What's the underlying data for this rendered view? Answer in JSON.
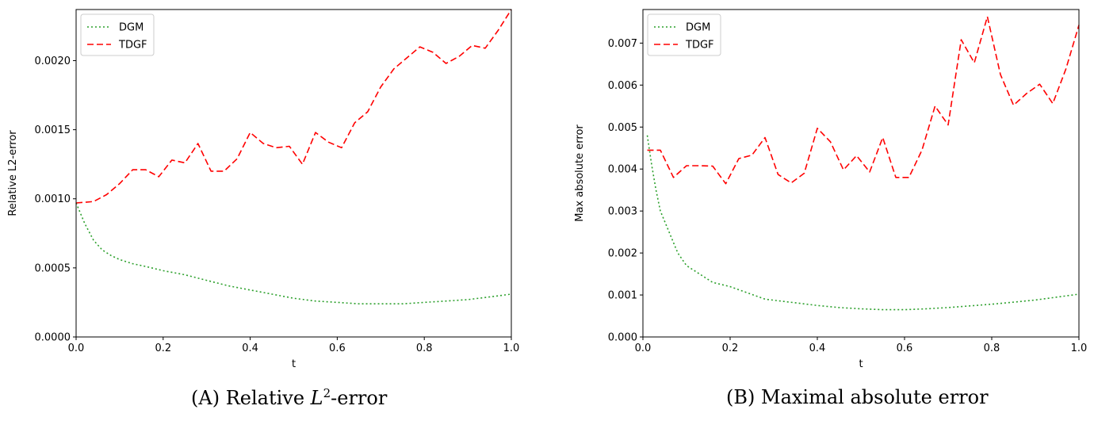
{
  "chart_data": [
    {
      "type": "line",
      "panel": "(A)",
      "caption": {
        "prefix": "(A) Relative ",
        "math": "L",
        "sup": "2",
        "suffix": "-error"
      },
      "xlabel": "t",
      "ylabel": "Relative L2-error",
      "xlim": [
        0.0,
        1.0
      ],
      "ylim": [
        0.0,
        0.00237
      ],
      "xticks": [
        0.0,
        0.2,
        0.4,
        0.6,
        0.8,
        1.0
      ],
      "xtick_labels": [
        "0.0",
        "0.2",
        "0.4",
        "0.6",
        "0.8",
        "1.0"
      ],
      "yticks": [
        0.0,
        0.0005,
        0.001,
        0.0015,
        0.002
      ],
      "ytick_labels": [
        "0.0000",
        "0.0005",
        "0.0010",
        "0.0015",
        "0.0020"
      ],
      "legend_position": "top-left",
      "series": [
        {
          "name": "DGM",
          "style": "dotted",
          "color": "#2ca02c",
          "x": [
            0.0,
            0.02,
            0.04,
            0.06,
            0.08,
            0.1,
            0.13,
            0.16,
            0.2,
            0.25,
            0.3,
            0.35,
            0.4,
            0.45,
            0.5,
            0.55,
            0.6,
            0.65,
            0.7,
            0.75,
            0.8,
            0.85,
            0.9,
            0.95,
            1.0
          ],
          "values": [
            0.00097,
            0.00082,
            0.0007,
            0.00063,
            0.00059,
            0.00056,
            0.00053,
            0.00051,
            0.00048,
            0.00045,
            0.00041,
            0.00037,
            0.00034,
            0.00031,
            0.00028,
            0.00026,
            0.00025,
            0.00024,
            0.00024,
            0.00024,
            0.00025,
            0.00026,
            0.00027,
            0.00029,
            0.00031
          ]
        },
        {
          "name": "TDGF",
          "style": "dashed",
          "color": "#ff0000",
          "x": [
            0.0,
            0.04,
            0.07,
            0.1,
            0.13,
            0.16,
            0.19,
            0.22,
            0.25,
            0.28,
            0.31,
            0.34,
            0.37,
            0.4,
            0.43,
            0.46,
            0.49,
            0.52,
            0.55,
            0.58,
            0.61,
            0.64,
            0.67,
            0.7,
            0.73,
            0.76,
            0.79,
            0.82,
            0.85,
            0.88,
            0.91,
            0.94,
            0.97,
            1.0
          ],
          "values": [
            0.00097,
            0.00098,
            0.00103,
            0.00111,
            0.00121,
            0.00121,
            0.00116,
            0.00128,
            0.00126,
            0.0014,
            0.0012,
            0.0012,
            0.00129,
            0.00148,
            0.0014,
            0.00137,
            0.00138,
            0.00125,
            0.00148,
            0.00141,
            0.00137,
            0.00155,
            0.00163,
            0.00181,
            0.00194,
            0.00202,
            0.0021,
            0.00206,
            0.00198,
            0.00203,
            0.00211,
            0.00209,
            0.00222,
            0.00237
          ]
        }
      ]
    },
    {
      "type": "line",
      "panel": "(B)",
      "caption": {
        "prefix": "(B) Maximal absolute error",
        "math": "",
        "sup": "",
        "suffix": ""
      },
      "xlabel": "t",
      "ylabel": "Max absolute error",
      "xlim": [
        0.0,
        1.0
      ],
      "ylim": [
        0.0,
        0.0078
      ],
      "xticks": [
        0.0,
        0.2,
        0.4,
        0.6,
        0.8,
        1.0
      ],
      "xtick_labels": [
        "0.0",
        "0.2",
        "0.4",
        "0.6",
        "0.8",
        "1.0"
      ],
      "yticks": [
        0.0,
        0.001,
        0.002,
        0.003,
        0.004,
        0.005,
        0.006,
        0.007
      ],
      "ytick_labels": [
        "0.000",
        "0.001",
        "0.002",
        "0.003",
        "0.004",
        "0.005",
        "0.006",
        "0.007"
      ],
      "legend_position": "top-left",
      "series": [
        {
          "name": "DGM",
          "style": "dotted",
          "color": "#2ca02c",
          "x": [
            0.01,
            0.02,
            0.03,
            0.04,
            0.06,
            0.08,
            0.1,
            0.13,
            0.16,
            0.2,
            0.24,
            0.28,
            0.32,
            0.36,
            0.4,
            0.45,
            0.5,
            0.55,
            0.6,
            0.65,
            0.7,
            0.75,
            0.8,
            0.85,
            0.9,
            0.95,
            1.0
          ],
          "values": [
            0.0048,
            0.0041,
            0.0035,
            0.003,
            0.0025,
            0.002,
            0.0017,
            0.0015,
            0.0013,
            0.0012,
            0.00105,
            0.0009,
            0.00085,
            0.0008,
            0.00075,
            0.0007,
            0.00067,
            0.00065,
            0.00065,
            0.00067,
            0.0007,
            0.00074,
            0.00078,
            0.00083,
            0.00088,
            0.00095,
            0.00102
          ]
        },
        {
          "name": "TDGF",
          "style": "dashed",
          "color": "#ff0000",
          "x": [
            0.01,
            0.04,
            0.07,
            0.1,
            0.13,
            0.16,
            0.19,
            0.22,
            0.25,
            0.28,
            0.31,
            0.34,
            0.37,
            0.4,
            0.43,
            0.46,
            0.49,
            0.52,
            0.55,
            0.58,
            0.61,
            0.64,
            0.67,
            0.7,
            0.73,
            0.76,
            0.79,
            0.82,
            0.85,
            0.88,
            0.91,
            0.94,
            0.97,
            1.0
          ],
          "values": [
            0.00445,
            0.00445,
            0.0038,
            0.00408,
            0.00408,
            0.00407,
            0.00365,
            0.00425,
            0.00433,
            0.00475,
            0.00387,
            0.00367,
            0.0039,
            0.00497,
            0.00465,
            0.00398,
            0.00432,
            0.00393,
            0.00475,
            0.0038,
            0.0038,
            0.00445,
            0.0055,
            0.00505,
            0.00708,
            0.00653,
            0.00763,
            0.00625,
            0.00552,
            0.0058,
            0.00602,
            0.00556,
            0.00638,
            0.00743
          ]
        }
      ]
    }
  ]
}
